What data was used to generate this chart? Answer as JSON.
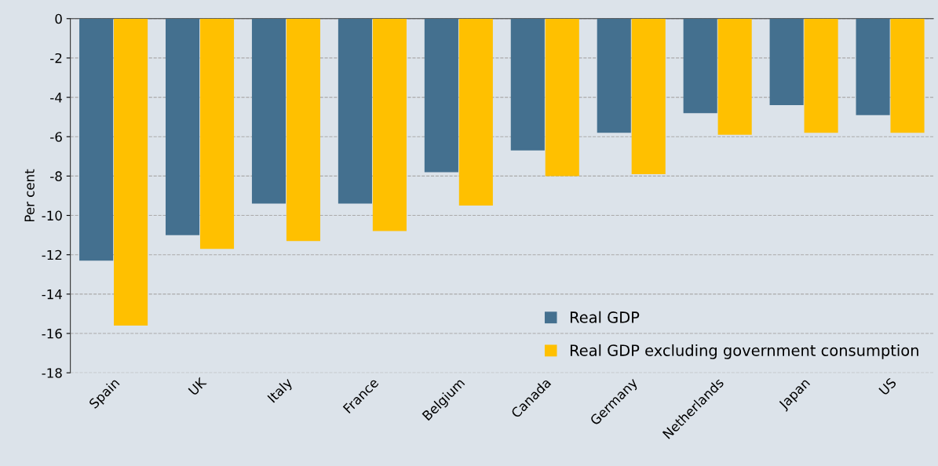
{
  "chart_data": {
    "type": "bar",
    "ylabel": "Per cent",
    "categories": [
      "Spain",
      "UK",
      "Italy",
      "France",
      "Belgium",
      "Canada",
      "Germany",
      "Netherlands",
      "Japan",
      "US"
    ],
    "series": [
      {
        "name": "Real GDP",
        "color": "#44708f",
        "values": [
          -12.3,
          -11.0,
          -9.4,
          -9.4,
          -7.8,
          -6.7,
          -5.8,
          -4.8,
          -4.4,
          -4.9
        ]
      },
      {
        "name": "Real GDP excluding government consumption",
        "color": "#ffc000",
        "values": [
          -15.6,
          -11.7,
          -11.3,
          -10.8,
          -9.5,
          -8.0,
          -7.9,
          -5.9,
          -5.8,
          -5.8
        ]
      }
    ],
    "ylim": [
      -18,
      0
    ],
    "yticks": [
      0,
      -2,
      -4,
      -6,
      -8,
      -10,
      -12,
      -14,
      -16,
      -18
    ],
    "grid": "y",
    "legend": "bottom right"
  }
}
